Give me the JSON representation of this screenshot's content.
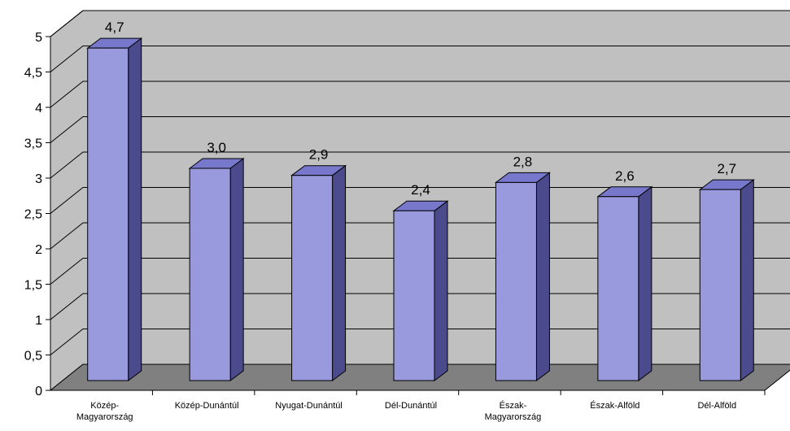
{
  "chart_data": {
    "type": "bar",
    "title": "",
    "xlabel": "",
    "ylabel": "",
    "categories": [
      [
        "Közép-",
        "Magyarország"
      ],
      [
        "Közép-Dunántúl"
      ],
      [
        "Nyugat-Dunántúl"
      ],
      [
        "Dél-Dunántúl"
      ],
      [
        "Észak-",
        "Magyarország"
      ],
      [
        "Észak-Alföld"
      ],
      [
        "Dél-Alföld"
      ]
    ],
    "values": [
      4.7,
      3.0,
      2.9,
      2.4,
      2.8,
      2.6,
      2.7
    ],
    "value_labels": [
      "4,7",
      "3,0",
      "2,9",
      "2,4",
      "2,8",
      "2,6",
      "2,7"
    ],
    "ylim": [
      0,
      5
    ],
    "yticks": [
      0,
      0.5,
      1,
      1.5,
      2,
      2.5,
      3,
      3.5,
      4,
      4.5,
      5
    ],
    "ytick_labels": [
      "0",
      "0,5",
      "1",
      "1,5",
      "2",
      "2,5",
      "3",
      "3,5",
      "4",
      "4,5",
      "5"
    ],
    "grid": true,
    "legend": "none",
    "colors": {
      "bar_front": "#9999dd",
      "bar_side": "#4a4a8c",
      "bar_top": "#7777cc",
      "wall": "#c0c0c0",
      "floor": "#808080"
    }
  }
}
